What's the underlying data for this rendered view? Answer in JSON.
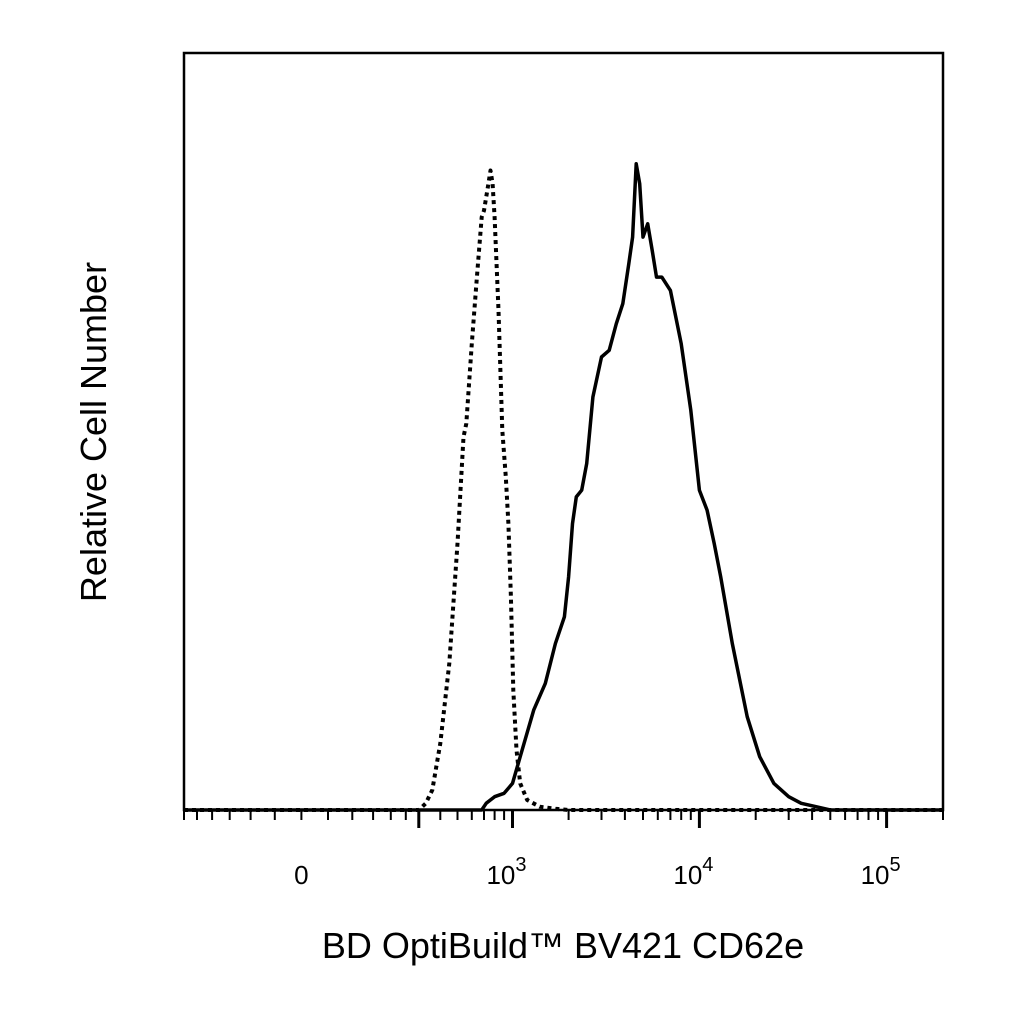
{
  "chart_data": {
    "type": "line",
    "xlabel": "BD OptiBuild™ BV421 CD62e",
    "ylabel": "Relative Cell Number",
    "x_scale": "biexponential",
    "xlim": [
      -300,
      200000
    ],
    "ylim": [
      0,
      100
    ],
    "grid": false,
    "legend": "none",
    "x_tick_labels": [
      {
        "value": 0,
        "base": "0",
        "exp": ""
      },
      {
        "value": 1000,
        "base": "10",
        "exp": "3"
      },
      {
        "value": 10000,
        "base": "10",
        "exp": "4"
      },
      {
        "value": 100000,
        "base": "10",
        "exp": "5"
      }
    ],
    "series": [
      {
        "style": "dotted",
        "x": [
          -300,
          300,
          330,
          360,
          400,
          450,
          500,
          540,
          560,
          600,
          640,
          680,
          700,
          720,
          740,
          760,
          780,
          800,
          840,
          880,
          920,
          950,
          980,
          1010,
          1050,
          1100,
          1200,
          1400,
          1700,
          2000,
          200000
        ],
        "y": [
          0,
          0,
          1,
          3,
          10,
          22,
          40,
          56,
          58,
          70,
          80,
          89,
          90,
          92,
          94,
          96,
          94,
          89,
          75,
          57,
          50,
          43,
          32,
          18,
          9,
          4,
          1.5,
          0.5,
          0.2,
          0,
          0
        ]
      },
      {
        "style": "solid",
        "x": [
          -300,
          680,
          720,
          800,
          900,
          1000,
          1100,
          1300,
          1500,
          1700,
          1900,
          2000,
          2100,
          2200,
          2350,
          2500,
          2700,
          3000,
          3300,
          3600,
          3900,
          4200,
          4400,
          4600,
          4800,
          5000,
          5300,
          5600,
          5900,
          6300,
          7000,
          8000,
          9000,
          10000,
          11000,
          12000,
          13000,
          15000,
          18000,
          21000,
          25000,
          30000,
          35000,
          42000,
          50000,
          200000
        ],
        "y": [
          0,
          0,
          1,
          2,
          2.5,
          4,
          8,
          15,
          19,
          25,
          29,
          35,
          43,
          47,
          48,
          52,
          62,
          68,
          69,
          73,
          76,
          82,
          86,
          97,
          94,
          86,
          88,
          84,
          80,
          80,
          78,
          70,
          60,
          48,
          45,
          40,
          35,
          25,
          14,
          8,
          4,
          2,
          1,
          0.5,
          0,
          0
        ]
      }
    ]
  }
}
